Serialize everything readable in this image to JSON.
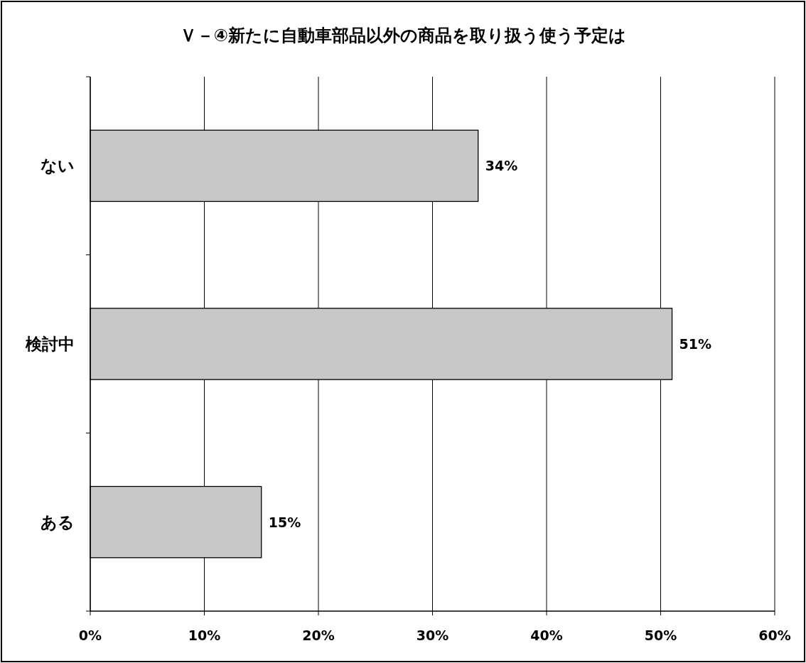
{
  "chart_data": {
    "type": "bar",
    "orientation": "horizontal",
    "title": "Ｖ－④新たに自動車部品以外の商品を取り扱う使う予定は",
    "categories": [
      "ない",
      "検討中",
      "ある"
    ],
    "values": [
      34,
      51,
      15
    ],
    "value_labels": [
      "34%",
      "51%",
      "15%"
    ],
    "color": "#c8c8c8",
    "xlim": [
      0,
      60
    ],
    "xticks": [
      {
        "value": 0,
        "label": "0%"
      },
      {
        "value": 10,
        "label": "10%"
      },
      {
        "value": 20,
        "label": "20%"
      },
      {
        "value": 30,
        "label": "30%"
      },
      {
        "value": 40,
        "label": "40%"
      },
      {
        "value": 50,
        "label": "50%"
      },
      {
        "value": 60,
        "label": "60%"
      }
    ],
    "grid": "x"
  }
}
